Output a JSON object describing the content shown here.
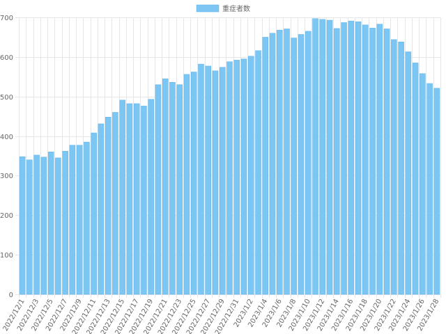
{
  "colors": {
    "bar_fill": "#7cc6f3",
    "bar_stroke": "#5fb2ea",
    "grid": "#e6e6e6",
    "text": "#666666"
  },
  "chart_data": {
    "type": "bar",
    "title": "",
    "xlabel": "",
    "ylabel": "",
    "ylim": [
      0,
      700
    ],
    "yticks": [
      0,
      100,
      200,
      300,
      400,
      500,
      600,
      700
    ],
    "grid": true,
    "legend_position": "top-center",
    "categories": [
      "2022/12/1",
      "2022/12/2",
      "2022/12/3",
      "2022/12/4",
      "2022/12/5",
      "2022/12/6",
      "2022/12/7",
      "2022/12/8",
      "2022/12/9",
      "2022/12/10",
      "2022/12/11",
      "2022/12/12",
      "2022/12/13",
      "2022/12/14",
      "2022/12/15",
      "2022/12/16",
      "2022/12/17",
      "2022/12/18",
      "2022/12/19",
      "2022/12/20",
      "2022/12/21",
      "2022/12/22",
      "2022/12/23",
      "2022/12/24",
      "2022/12/25",
      "2022/12/26",
      "2022/12/27",
      "2022/12/28",
      "2022/12/29",
      "2022/12/30",
      "2022/12/31",
      "2023/1/1",
      "2023/1/2",
      "2023/1/3",
      "2023/1/4",
      "2023/1/5",
      "2023/1/6",
      "2023/1/7",
      "2023/1/8",
      "2023/1/9",
      "2023/1/10",
      "2023/1/11",
      "2023/1/12",
      "2023/1/13",
      "2023/1/14",
      "2023/1/15",
      "2023/1/16",
      "2023/1/17",
      "2023/1/18",
      "2023/1/19",
      "2023/1/20",
      "2023/1/21",
      "2023/1/22",
      "2023/1/23",
      "2023/1/24",
      "2023/1/25",
      "2023/1/26",
      "2023/1/27",
      "2023/1/28"
    ],
    "series": [
      {
        "name": "重症者数",
        "values": [
          348,
          340,
          352,
          347,
          360,
          345,
          362,
          377,
          377,
          385,
          408,
          431,
          448,
          460,
          491,
          482,
          482,
          476,
          493,
          530,
          545,
          536,
          530,
          556,
          562,
          582,
          577,
          565,
          574,
          588,
          592,
          595,
          602,
          616,
          650,
          660,
          668,
          671,
          648,
          657,
          665,
          697,
          695,
          693,
          672,
          687,
          691,
          689,
          681,
          673,
          683,
          671,
          644,
          638,
          613,
          585,
          558,
          533,
          521
        ]
      }
    ]
  }
}
